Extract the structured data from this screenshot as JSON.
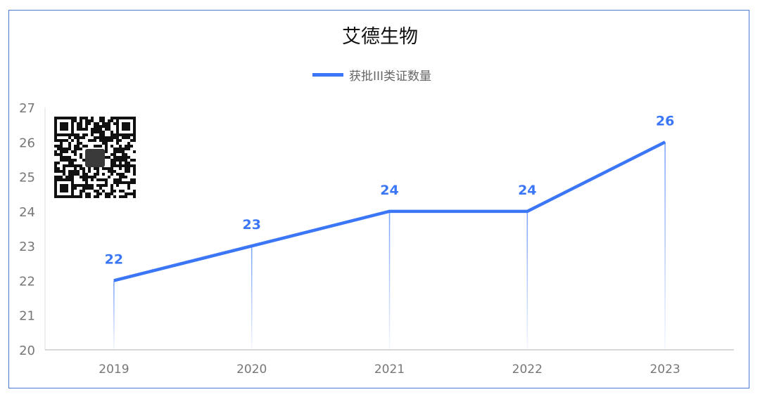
{
  "chart_data": {
    "type": "line",
    "title": "艾德生物",
    "categories": [
      "2019",
      "2020",
      "2021",
      "2022",
      "2023"
    ],
    "series": [
      {
        "name": "获批III类证数量",
        "values": [
          22,
          23,
          24,
          24,
          26
        ]
      }
    ],
    "ylim": [
      20,
      27
    ],
    "yticks": [
      20,
      21,
      22,
      23,
      24,
      25,
      26,
      27
    ],
    "xlabel": "",
    "ylabel": "",
    "legend": "top-center",
    "grid": false,
    "colors": {
      "series": "#3b76f6",
      "axis_text": "#777777",
      "frame": "#4a78d0"
    }
  },
  "qr_code": "qr-code-image"
}
